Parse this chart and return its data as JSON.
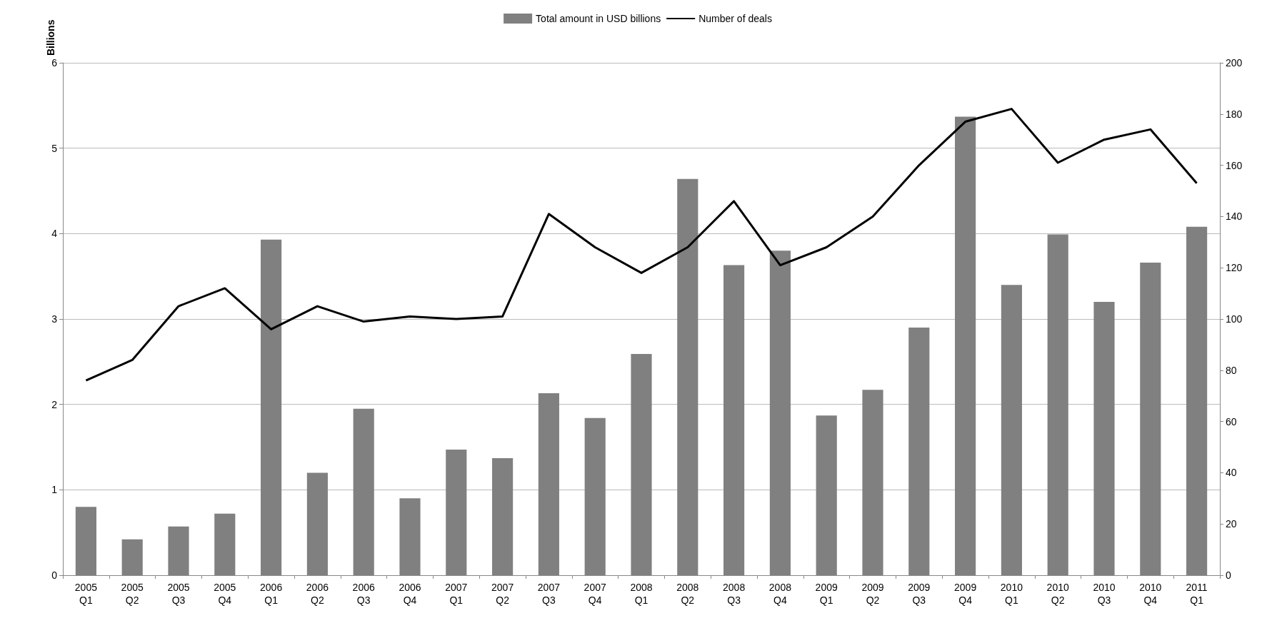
{
  "chart_data": {
    "type": "bar",
    "ylabel": "Billions",
    "categories": [
      "2005 Q1",
      "2005 Q2",
      "2005 Q3",
      "2005 Q4",
      "2006 Q1",
      "2006 Q2",
      "2006 Q3",
      "2006 Q4",
      "2007 Q1",
      "2007 Q2",
      "2007 Q3",
      "2007 Q4",
      "2008 Q1",
      "2008 Q2",
      "2008 Q3",
      "2008 Q4",
      "2009 Q1",
      "2009 Q2",
      "2009 Q3",
      "2009 Q4",
      "2010 Q1",
      "2010 Q2",
      "2010 Q3",
      "2010 Q4",
      "2011 Q1"
    ],
    "series": [
      {
        "name": "Total amount in USD billions",
        "color": "#808080",
        "values": [
          0.8,
          0.42,
          0.57,
          0.72,
          3.93,
          1.2,
          1.95,
          0.9,
          1.47,
          1.37,
          2.13,
          1.84,
          2.59,
          4.64,
          3.63,
          3.8,
          1.87,
          2.17,
          2.9,
          5.37,
          3.4,
          3.99,
          3.2,
          3.66,
          4.08
        ]
      },
      {
        "name": "Number of deals",
        "type": "line",
        "axis": "y2",
        "color": "#000000",
        "values": [
          76,
          84,
          105,
          112,
          96,
          105,
          99,
          101,
          100,
          101,
          141,
          128,
          118,
          128,
          146,
          121,
          128,
          140,
          160,
          177,
          182,
          161,
          170,
          174,
          153
        ]
      }
    ],
    "ylim": [
      0,
      6
    ],
    "yticks": [
      0,
      1,
      2,
      3,
      4,
      5,
      6
    ],
    "y2lim": [
      0,
      200
    ],
    "y2ticks": [
      0,
      20,
      40,
      60,
      80,
      100,
      120,
      140,
      160,
      180,
      200
    ],
    "grid": "y",
    "legend": "top",
    "marker": "none",
    "line_style": "solid"
  }
}
